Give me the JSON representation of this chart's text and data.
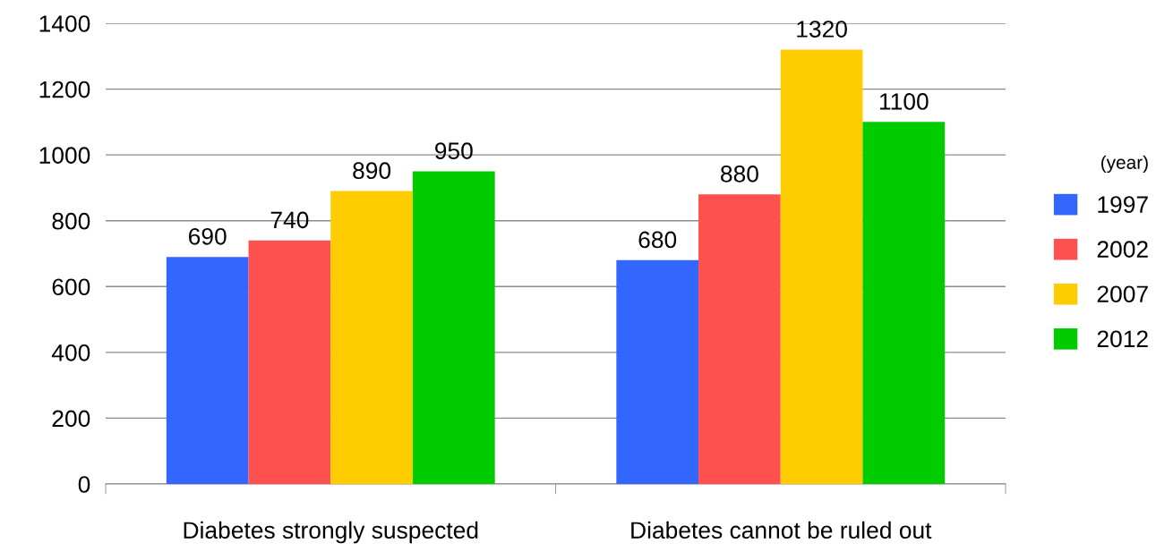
{
  "chart_data": {
    "type": "bar",
    "categories": [
      "Diabetes strongly suspected",
      "Diabetes cannot be ruled out"
    ],
    "series": [
      {
        "name": "1997",
        "color": "#3366ff",
        "values": [
          690,
          680
        ]
      },
      {
        "name": "2002",
        "color": "#ff5050",
        "values": [
          740,
          880
        ]
      },
      {
        "name": "2007",
        "color": "#ffcc00",
        "values": [
          890,
          1320
        ]
      },
      {
        "name": "2012",
        "color": "#00cc00",
        "values": [
          950,
          1100
        ]
      }
    ],
    "legend_title": "(year)",
    "legend": "right",
    "ylim": [
      0,
      1400
    ],
    "yticks": [
      0,
      200,
      400,
      600,
      800,
      1000,
      1200,
      1400
    ],
    "grid": "y",
    "data_labels": true
  }
}
